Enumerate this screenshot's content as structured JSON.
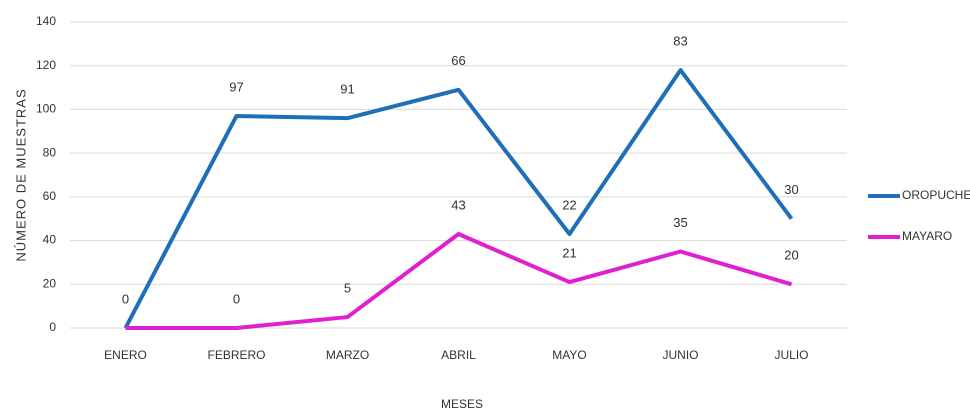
{
  "chart_data": {
    "type": "line",
    "x_label": "MESES",
    "y_label": "NÚMERO DE MUESTRAS",
    "categories": [
      "ENERO",
      "FEBRERO",
      "MARZO",
      "ABRIL",
      "MAYO",
      "JUNIO",
      "JULIO"
    ],
    "series": [
      {
        "name": "OROPUCHE",
        "color": "#1f6fb8",
        "values": [
          0,
          97,
          96,
          109,
          43,
          118,
          50
        ],
        "point_labels": [
          null,
          97,
          91,
          66,
          22,
          83,
          30
        ]
      },
      {
        "name": "MAYARO",
        "color": "#e020d0",
        "values": [
          0,
          0,
          5,
          43,
          21,
          35,
          20
        ]
      }
    ],
    "ylim": [
      0,
      140
    ],
    "yticks": [
      0,
      20,
      40,
      60,
      80,
      100,
      120,
      140
    ],
    "grid": true,
    "legend": "right"
  }
}
